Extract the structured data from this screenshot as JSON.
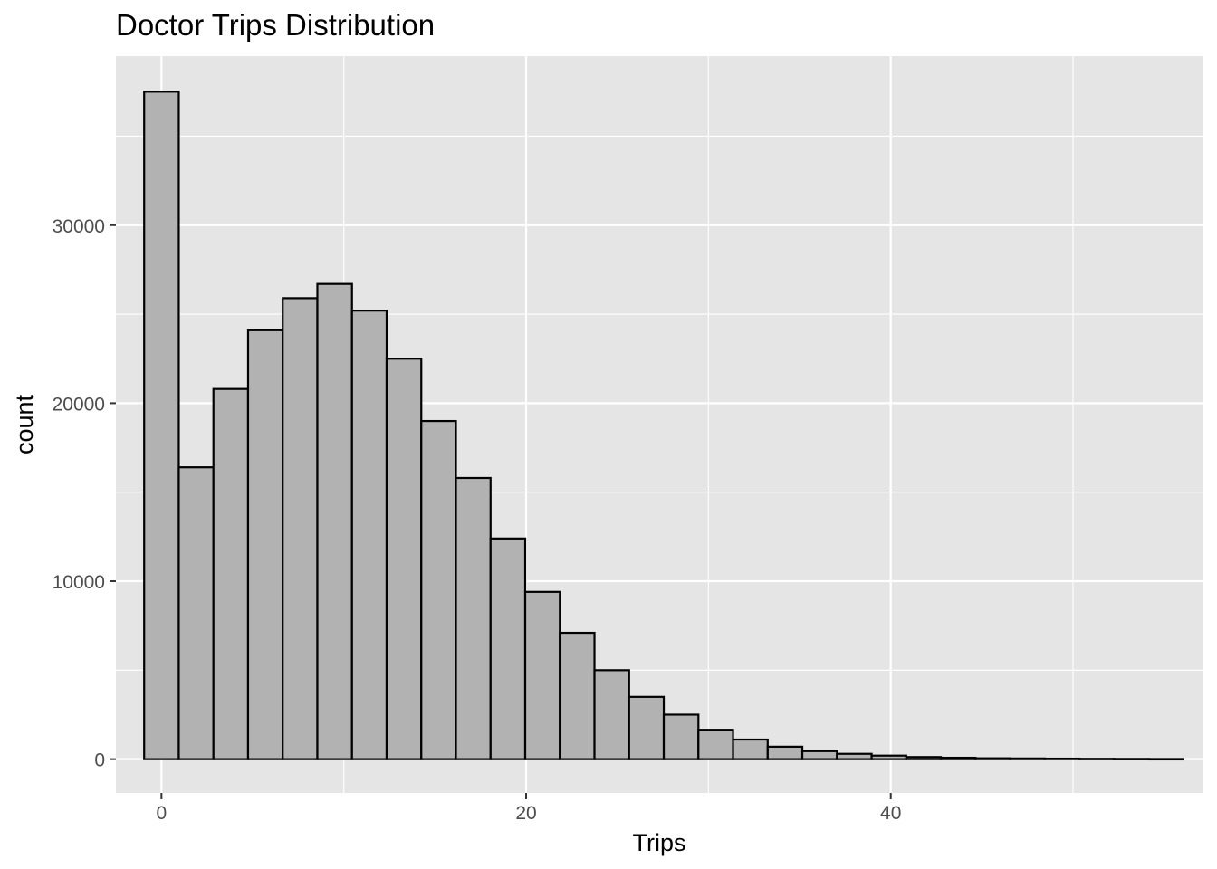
{
  "chart_data": {
    "type": "bar",
    "title": "Doctor Trips Distribution",
    "xlabel": "Trips",
    "ylabel": "count",
    "bin_width": 1.9,
    "bin_centers": [
      0,
      1.9,
      3.8,
      5.7,
      7.6,
      9.5,
      11.4,
      13.3,
      15.2,
      17.1,
      19.0,
      20.9,
      22.8,
      24.7,
      26.6,
      28.5,
      30.4,
      32.3,
      34.2,
      36.1,
      38.0,
      39.9,
      41.8,
      43.7,
      45.6,
      47.5,
      49.4,
      51.3,
      53.2,
      55.1
    ],
    "values": [
      37500,
      16400,
      20800,
      24100,
      25900,
      26700,
      25200,
      22500,
      19000,
      15800,
      12400,
      9400,
      7100,
      5000,
      3500,
      2500,
      1650,
      1100,
      700,
      450,
      300,
      200,
      120,
      80,
      50,
      40,
      30,
      20,
      15,
      10
    ],
    "xlim": [
      -2.5,
      57.1
    ],
    "ylim": [
      -1900,
      39500
    ],
    "x_ticks": [
      0,
      20,
      40
    ],
    "x_ticks_labels": [
      "0",
      "20",
      "40"
    ],
    "y_ticks": [
      0,
      10000,
      20000,
      30000
    ],
    "y_ticks_labels": [
      "0",
      "10000",
      "20000",
      "30000"
    ],
    "grid": true,
    "legend": "none",
    "colors": {
      "panel_background": "#e5e5e5",
      "grid_line": "#ffffff",
      "bar_fill": "#b2b2b2",
      "bar_outline": "#000000",
      "tick_text": "#4d4d4d",
      "tick_mark": "#333333"
    }
  }
}
